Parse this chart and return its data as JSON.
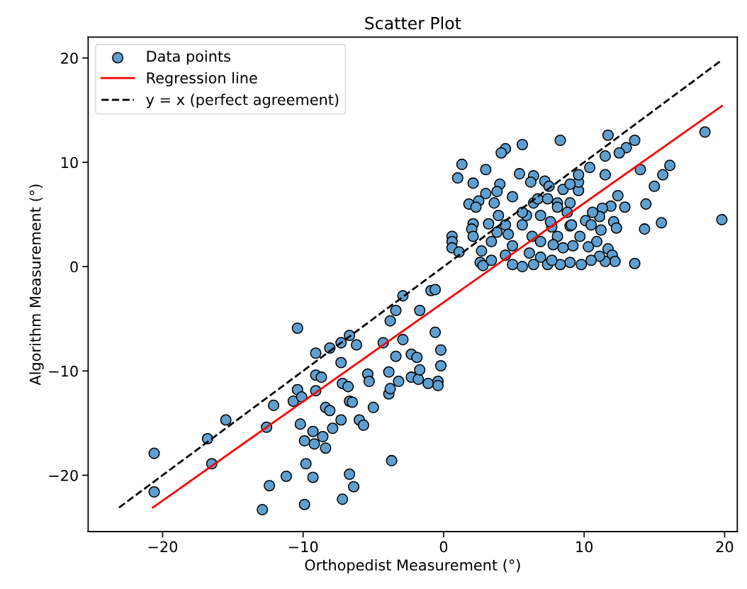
{
  "chart_data": {
    "type": "scatter",
    "title": "Scatter Plot",
    "xlabel": "Orthopedist Measurement (°)",
    "ylabel": "Algorithm Measurement (°)",
    "xlim": [
      -25.3,
      20.9
    ],
    "ylim": [
      -25.4,
      22.0
    ],
    "xticks": [
      {
        "value": -20,
        "label": "−20"
      },
      {
        "value": -10,
        "label": "−10"
      },
      0,
      10,
      20
    ],
    "yticks": [
      {
        "value": -20,
        "label": "−20"
      },
      {
        "value": -10,
        "label": "−10"
      },
      0,
      10,
      20
    ],
    "legend": "top left",
    "series": [
      {
        "name": "Data points",
        "marker": "circle",
        "color": "#5f9fd0",
        "x": [
          -20.6,
          -20.6,
          -16.8,
          -16.5,
          -15.5,
          -12.6,
          -12.4,
          -12.9,
          -12.1,
          -11.2,
          -10.4,
          -10.4,
          -10.7,
          -10.1,
          -10.2,
          -9.8,
          -9.9,
          -9.9,
          -9.3,
          -9.2,
          -8.6,
          -8.4,
          -9.3,
          -9.1,
          -9.1,
          -9.1,
          -8.7,
          -8.4,
          -8.1,
          -8.1,
          -7.9,
          -7.3,
          -7.3,
          -7.3,
          -6.7,
          -7.2,
          -6.8,
          -6.7,
          -6.5,
          -6.2,
          -6.7,
          -6.4,
          -7.2,
          -6.0,
          -5.7,
          -5.0,
          -5.4,
          -5.3,
          -4.3,
          -3.9,
          -3.9,
          -3.8,
          -3.2,
          -3.8,
          -3.4,
          -2.9,
          -2.9,
          -3.4,
          -3.7,
          -2.3,
          -1.9,
          -1.7,
          -2.3,
          -1.8,
          -1.7,
          -1.1,
          -0.4,
          -0.4,
          -0.6,
          -0.2,
          -0.2,
          -0.9,
          -0.6,
          18.6,
          19.8,
          13.6,
          13.0,
          12.5,
          11.7,
          11.5,
          11.5,
          10.4,
          14.0,
          16.1,
          15.6,
          15.0,
          14.4,
          15.5,
          14.3,
          13.6,
          12.4,
          12.9,
          11.9,
          11.3,
          11.1,
          10.6,
          10.1,
          10.5,
          11.2,
          12.1,
          12.3,
          10.9,
          10.3,
          9.7,
          9.2,
          9.0,
          11.7,
          12.0,
          12.2,
          11.5,
          11.1,
          10.5,
          9.8,
          9.0,
          8.3,
          8.5,
          8.1,
          7.7,
          8.1,
          9.0,
          8.5,
          9.6,
          9.6,
          9.6,
          9.0,
          8.3,
          7.2,
          6.4,
          6.2,
          7.5,
          5.4,
          5.6,
          4.4,
          4.1,
          3.0,
          1.3,
          1.0,
          2.1,
          3.0,
          4.0,
          3.8,
          4.9,
          3.6,
          2.5,
          1.8,
          2.3,
          3.2,
          3.9,
          2.1,
          2.0,
          2.1,
          0.6,
          0.6,
          0.6,
          1.1,
          2.7,
          2.6,
          2.8,
          3.4,
          3.4,
          3.8,
          4.4,
          4.6,
          4.9,
          4.4,
          4.9,
          5.6,
          5.6,
          5.9,
          5.6,
          6.4,
          6.7,
          7.4,
          6.9,
          7.6,
          8.1,
          6.3,
          6.9,
          7.8,
          6.1,
          6.9,
          6.4,
          7.4,
          7.7,
          8.8,
          9.1
        ],
        "values": [
          -17.9,
          -21.6,
          -16.5,
          -18.9,
          -14.7,
          -15.4,
          -21.0,
          -23.3,
          -13.3,
          -20.1,
          -5.9,
          -11.8,
          -12.9,
          -12.5,
          -15.1,
          -18.9,
          -22.8,
          -16.7,
          -15.8,
          -17.0,
          -16.3,
          -17.4,
          -20.2,
          -11.9,
          -8.3,
          -10.4,
          -10.6,
          -13.5,
          -13.8,
          -7.8,
          -15.5,
          -14.7,
          -9.2,
          -7.3,
          -6.6,
          -11.2,
          -11.5,
          -12.9,
          -13.0,
          -7.5,
          -19.9,
          -21.1,
          -22.3,
          -14.7,
          -15.2,
          -13.5,
          -10.3,
          -11.0,
          -7.3,
          -10.1,
          -12.2,
          -11.7,
          -11.0,
          -5.2,
          -4.2,
          -2.8,
          -7.0,
          -8.6,
          -18.6,
          -8.4,
          -8.7,
          -4.2,
          -10.6,
          -10.8,
          -9.9,
          -11.2,
          -11.0,
          -11.4,
          -6.3,
          -8.0,
          -9.5,
          -2.3,
          -2.2,
          12.9,
          4.5,
          12.1,
          11.4,
          10.9,
          12.6,
          10.6,
          8.8,
          9.5,
          9.3,
          9.7,
          8.8,
          7.7,
          6.0,
          4.2,
          3.6,
          0.3,
          6.8,
          5.7,
          5.8,
          5.6,
          4.8,
          5.2,
          4.4,
          4.0,
          3.5,
          4.3,
          3.7,
          2.4,
          1.9,
          2.9,
          2.0,
          3.9,
          1.7,
          1.1,
          0.5,
          0.5,
          1.0,
          0.6,
          0.2,
          0.4,
          0.2,
          1.8,
          2.9,
          3.8,
          6.1,
          6.1,
          7.4,
          7.3,
          8.1,
          8.8,
          7.9,
          12.1,
          8.2,
          8.7,
          8.1,
          7.7,
          8.9,
          11.7,
          11.3,
          10.9,
          9.3,
          9.8,
          8.5,
          8.0,
          7.0,
          7.9,
          7.2,
          6.7,
          6.1,
          6.3,
          6.0,
          5.7,
          4.1,
          4.9,
          4.1,
          3.6,
          2.9,
          2.9,
          2.4,
          1.8,
          1.4,
          1.5,
          0.4,
          0.1,
          0.6,
          2.4,
          3.3,
          4.0,
          3.1,
          2.0,
          1.1,
          0.2,
          0.0,
          4.0,
          4.9,
          5.2,
          6.1,
          6.5,
          6.5,
          4.9,
          4.3,
          5.7,
          2.9,
          2.4,
          2.1,
          1.3,
          0.9,
          0.2,
          0.2,
          0.6,
          5.2,
          4.0
        ]
      },
      {
        "name": "Regression line",
        "type": "line",
        "marker": "none",
        "line_style": "solid",
        "color": "#ff0000",
        "x": [
          -20.7,
          19.8
        ],
        "values": [
          -23.1,
          15.4
        ]
      },
      {
        "name": "y = x (perfect agreement)",
        "type": "line",
        "marker": "none",
        "line_style": "dashed",
        "color": "#000000",
        "x": [
          -23.1,
          19.8
        ],
        "values": [
          -23.1,
          19.8
        ]
      }
    ]
  }
}
